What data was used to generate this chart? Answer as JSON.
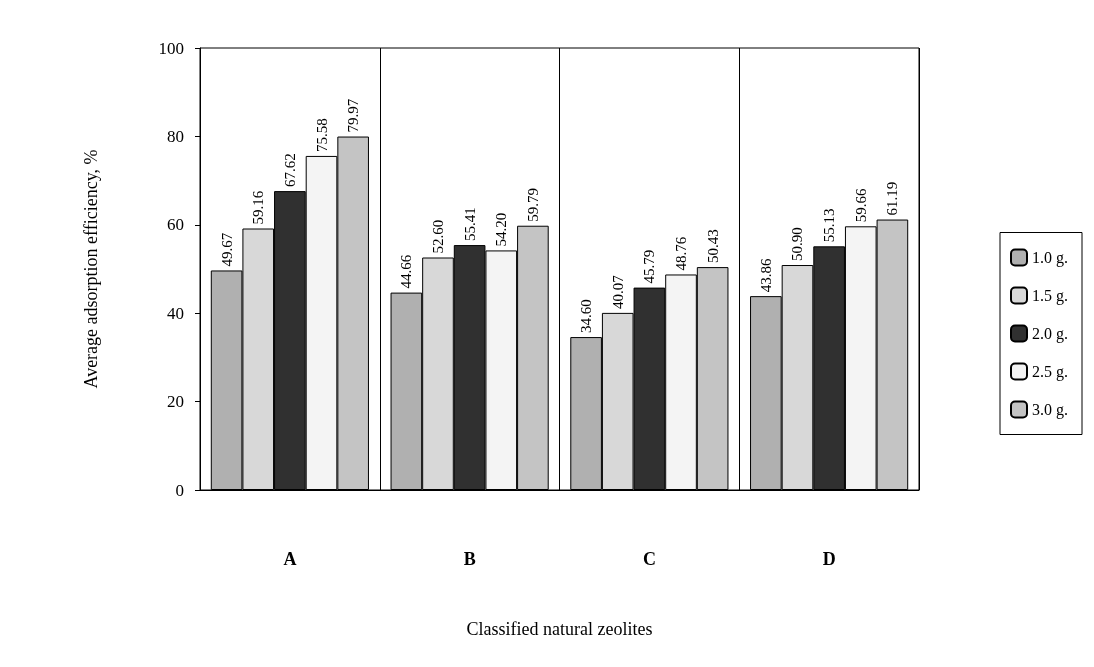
{
  "chart_data": {
    "type": "bar",
    "xlabel": "Classified natural zeolites",
    "ylabel": "Average adsorption efficiency, %",
    "categories": [
      "A",
      "B",
      "C",
      "D"
    ],
    "series": [
      {
        "name": "1.0 g.",
        "color": "#b0b0b0",
        "values": [
          49.67,
          44.66,
          34.6,
          43.86
        ],
        "value_labels": [
          "49.67",
          "44.66",
          "34.60",
          "43.86"
        ]
      },
      {
        "name": "1.5 g.",
        "color": "#d8d8d8",
        "values": [
          59.16,
          52.6,
          40.07,
          50.9
        ],
        "value_labels": [
          "59.16",
          "52.60",
          "40.07",
          "50.90"
        ]
      },
      {
        "name": "2.0 g.",
        "color": "#303030",
        "values": [
          67.62,
          55.41,
          45.79,
          55.13
        ],
        "value_labels": [
          "67.62",
          "55.41",
          "45.79",
          "55.13"
        ]
      },
      {
        "name": "2.5 g.",
        "color": "#f4f4f4",
        "values": [
          75.58,
          54.2,
          48.76,
          59.66
        ],
        "value_labels": [
          "75.58",
          "54.20",
          "48.76",
          "59.66"
        ]
      },
      {
        "name": "3.0 g.",
        "color": "#c4c4c4",
        "values": [
          79.97,
          59.79,
          50.43,
          61.19
        ],
        "value_labels": [
          "79.97",
          "59.79",
          "50.43",
          "61.19"
        ]
      }
    ],
    "ylim": [
      0,
      100
    ],
    "yticks": [
      0,
      20,
      40,
      60,
      80,
      100
    ],
    "grid": "x",
    "legend": "right"
  }
}
